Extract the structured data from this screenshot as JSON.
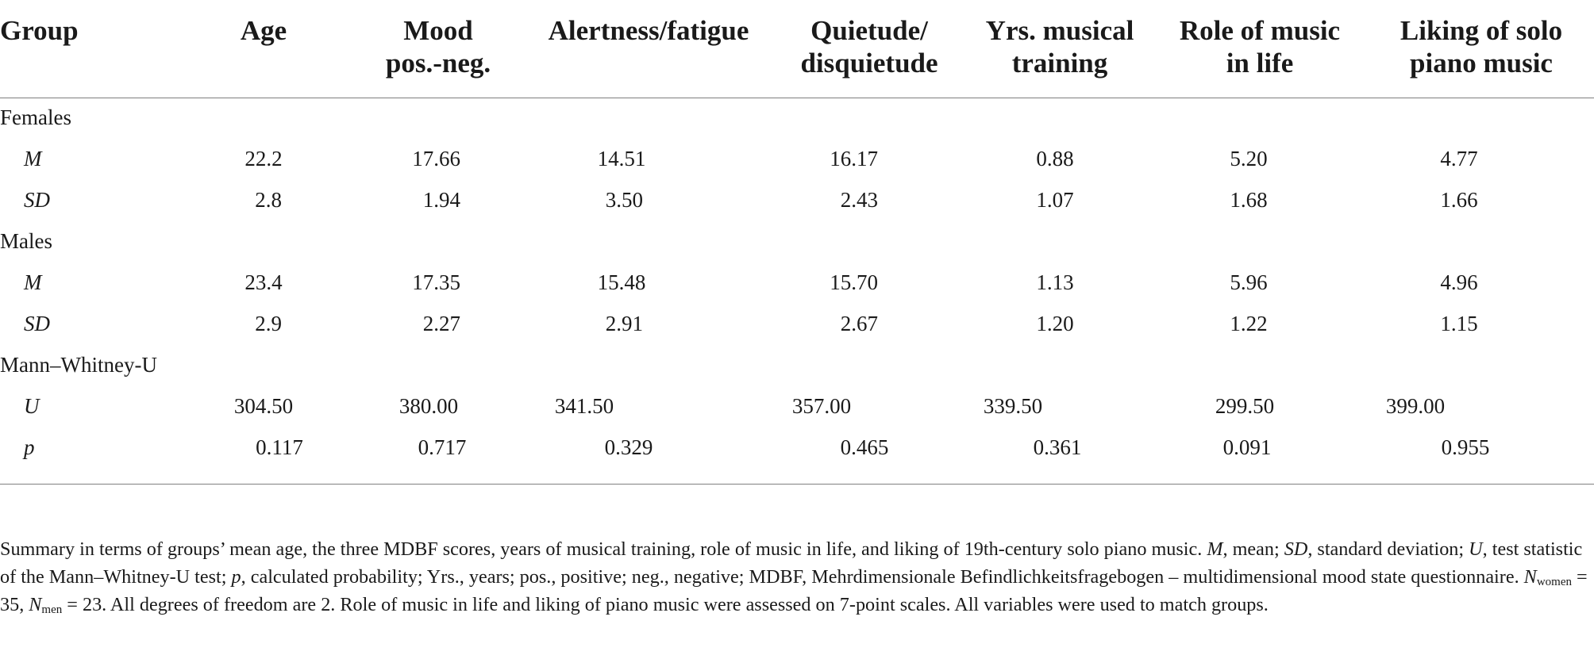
{
  "table": {
    "headers": [
      [
        "Group"
      ],
      [
        "Age"
      ],
      [
        "Mood",
        "pos.-neg."
      ],
      [
        "Alertness/fatigue"
      ],
      [
        "Quietude/",
        "disquietude"
      ],
      [
        "Yrs. musical",
        "training"
      ],
      [
        "Role of music",
        "in life"
      ],
      [
        "Liking of solo",
        "piano music"
      ]
    ],
    "groups": [
      {
        "label": "Females",
        "rows": [
          {
            "stat": "M",
            "values": [
              "22.2",
              "17.66",
              "14.51",
              "16.17",
              "0.88",
              "5.20",
              "4.77"
            ]
          },
          {
            "stat": "SD",
            "values": [
              "2.8",
              "1.94",
              "3.50",
              "2.43",
              "1.07",
              "1.68",
              "1.66"
            ]
          }
        ]
      },
      {
        "label": "Males",
        "rows": [
          {
            "stat": "M",
            "values": [
              "23.4",
              "17.35",
              "15.48",
              "15.70",
              "1.13",
              "5.96",
              "4.96"
            ]
          },
          {
            "stat": "SD",
            "values": [
              "2.9",
              "2.27",
              "2.91",
              "2.67",
              "1.20",
              "1.22",
              "1.15"
            ]
          }
        ]
      },
      {
        "label": "Mann–Whitney-U",
        "rows": [
          {
            "stat": "U",
            "values": [
              "304.50",
              "380.00",
              "341.50",
              "357.00",
              "339.50",
              "299.50",
              "399.00"
            ]
          },
          {
            "stat": "p",
            "values": [
              "0.117",
              "0.717",
              "0.329",
              "0.465",
              "0.361",
              "0.091",
              "0.955"
            ]
          }
        ]
      }
    ]
  },
  "note": {
    "p1": "Summary in terms of groups’ mean age, the three MDBF scores, years of musical training, role of music in life, and liking of 19th-century solo piano music. ",
    "m": "M",
    "p2": ", mean; ",
    "sd": "SD",
    "p3": ", standard deviation; ",
    "u": "U",
    "p4": ", test statistic of the Mann–Whitney-U test; ",
    "p": "p",
    "p5": ", calculated probability; Yrs., years; pos., positive; neg., negative; MDBF, Mehrdimensionale Befindlichkeitsfragebogen – multidimensional mood state questionnaire. ",
    "n1": "N",
    "n1_sub": "women",
    "n1_val": " = 35, ",
    "n2": "N",
    "n2_sub": "men",
    "n2_val": " = 23. All degrees of freedom are 2. Role of music in life and liking of piano music were assessed on 7-point scales. All variables were used to match groups."
  }
}
